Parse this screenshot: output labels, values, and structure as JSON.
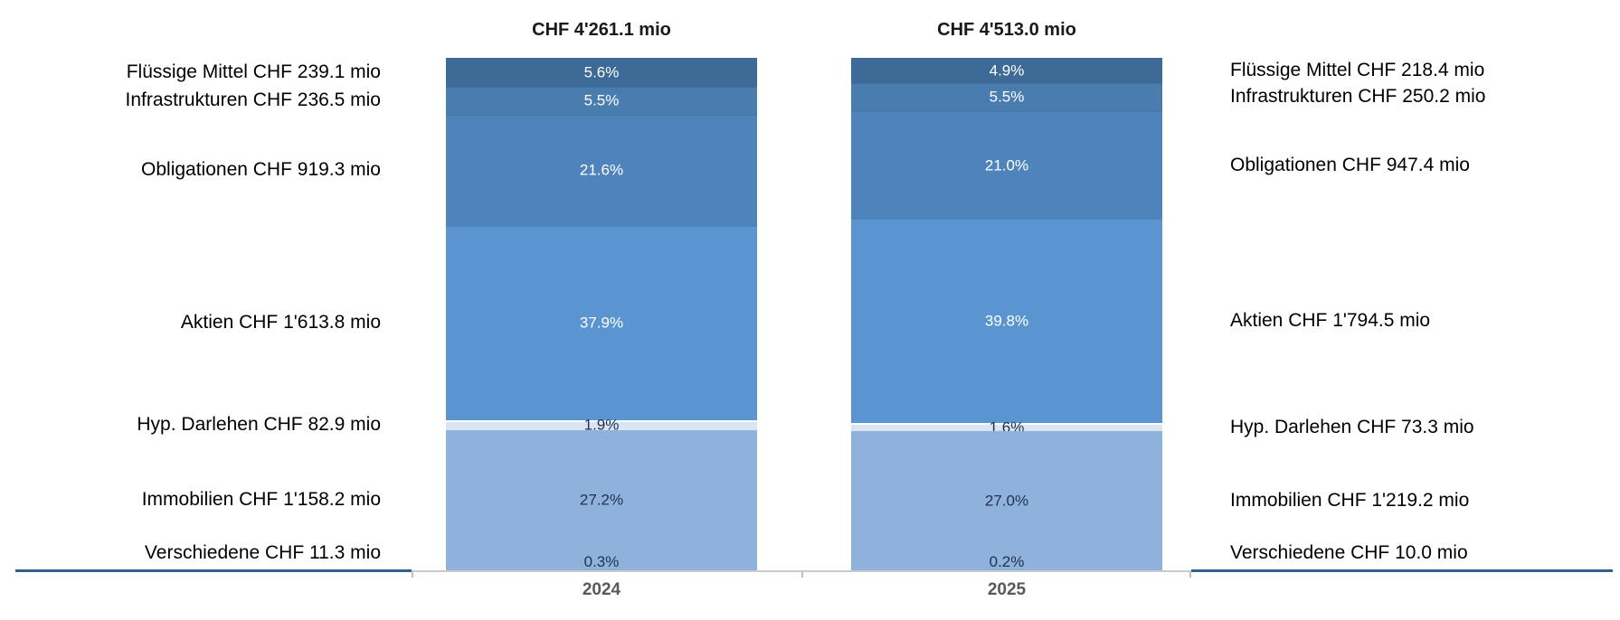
{
  "chart_data": {
    "type": "bar",
    "subtype": "100-percent-stacked-column-comparison",
    "unit": "CHF mio",
    "categories": [
      "2024",
      "2025"
    ],
    "column_totals": [
      "CHF 4'261.1 mio",
      "CHF 4'513.0 mio"
    ],
    "series": [
      {
        "name": "Flüssige Mittel",
        "color": "#3D6A96",
        "value_label_color": "#FFFFFF",
        "values_chf_mio": [
          239.1,
          218.4
        ],
        "pct": [
          5.6,
          4.9
        ],
        "pct_labels": [
          "5.6%",
          "4.9%"
        ],
        "side_labels": [
          "Flüssige Mittel CHF 239.1 mio",
          "Flüssige Mittel CHF 218.4 mio"
        ]
      },
      {
        "name": "Infrastrukturen",
        "color": "#4A7DAF",
        "value_label_color": "#FFFFFF",
        "values_chf_mio": [
          236.5,
          250.2
        ],
        "pct": [
          5.5,
          5.5
        ],
        "pct_labels": [
          "5.5%",
          "5.5%"
        ],
        "side_labels": [
          "Infrastrukturen CHF 236.5 mio",
          "Infrastrukturen CHF 250.2 mio"
        ]
      },
      {
        "name": "Obligationen",
        "color": "#4E84BB",
        "value_label_color": "#FFFFFF",
        "values_chf_mio": [
          919.3,
          947.4
        ],
        "pct": [
          21.6,
          21.0
        ],
        "pct_labels": [
          "21.6%",
          "21.0%"
        ],
        "side_labels": [
          "Obligationen CHF 919.3 mio",
          "Obligationen CHF 947.4 mio"
        ]
      },
      {
        "name": "Aktien",
        "color": "#5A95D1",
        "value_label_color": "#FFFFFF",
        "values_chf_mio": [
          1613.8,
          1794.5
        ],
        "pct": [
          37.9,
          39.8
        ],
        "pct_labels": [
          "37.9%",
          "39.8%"
        ],
        "side_labels": [
          "Aktien CHF 1'613.8 mio",
          "Aktien CHF 1'794.5 mio"
        ]
      },
      {
        "name": "Hyp. Darlehen",
        "color": "#D9E5F2",
        "value_label_color": "#1F3050",
        "values_chf_mio": [
          82.9,
          73.3
        ],
        "pct": [
          1.9,
          1.6
        ],
        "pct_labels": [
          "1.9%",
          "1.6%"
        ],
        "side_labels": [
          "Hyp. Darlehen CHF 82.9 mio",
          "Hyp. Darlehen CHF 73.3 mio"
        ]
      },
      {
        "name": "Immobilien",
        "color": "#8FB2DD",
        "value_label_color": "#1F3050",
        "values_chf_mio": [
          1158.2,
          1219.2
        ],
        "pct": [
          27.2,
          27.0
        ],
        "pct_labels": [
          "27.2%",
          "27.0%"
        ],
        "side_labels": [
          "Immobilien CHF 1'158.2 mio",
          "Immobilien CHF 1'219.2 mio"
        ]
      },
      {
        "name": "Verschiedene",
        "color": "#8FB2DD",
        "value_label_color": "#1F3050",
        "values_chf_mio": [
          11.3,
          10.0
        ],
        "pct": [
          0.3,
          0.2
        ],
        "pct_labels": [
          "0.3%",
          "0.2%"
        ],
        "side_labels": [
          "Verschiedene CHF 11.3 mio",
          "Verschiedene CHF 10.0 mio"
        ]
      }
    ],
    "axis": {
      "baseline_outer_color": "#31618F",
      "baseline_inner_color": "#C9C9C9",
      "tick_color": "#BFBFBF"
    },
    "layout_hints": {
      "value_axis_visible": false,
      "gridlines": false,
      "legend": "none",
      "left_labels_refer_to": "2024",
      "right_labels_refer_to": "2025",
      "segment_order_top_to_bottom": [
        "Flüssige Mittel",
        "Infrastrukturen",
        "Obligationen",
        "Aktien",
        "Hyp. Darlehen",
        "Immobilien",
        "Verschiedene"
      ]
    },
    "text_colors": {
      "column_total": "#1A1A1A",
      "side_label": "#000000",
      "category_label": "#595959"
    }
  }
}
